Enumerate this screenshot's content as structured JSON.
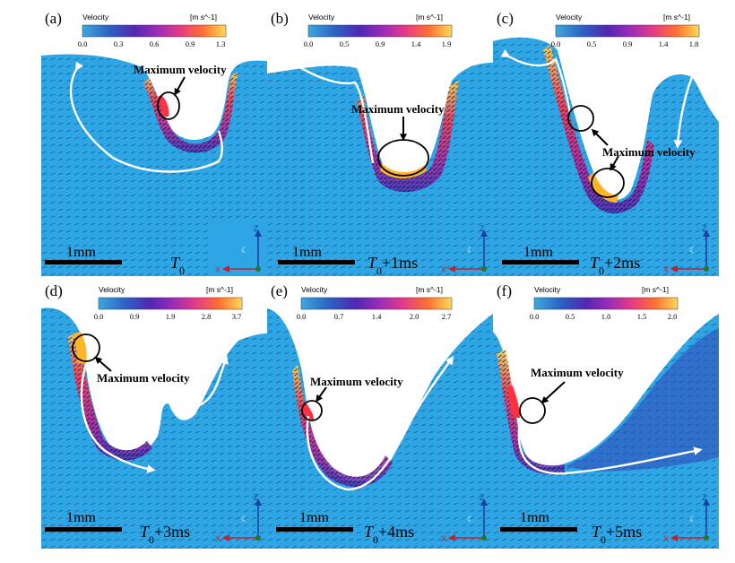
{
  "colorbar": {
    "title": "Velocity",
    "unit": "[m s^-1]",
    "colors": [
      "#3fa8df",
      "#2a64c4",
      "#5226b4",
      "#9a2cb8",
      "#e63a86",
      "#ff7030",
      "#ffd95a"
    ]
  },
  "scale_bar_label": "1mm",
  "annotation_label": "Maximum velocity",
  "axis_labels": {
    "z": "Z",
    "x": "X"
  },
  "colors": {
    "fluid": "#2ea6e6",
    "flow_arrow": "#ffffff",
    "marker": "#000000",
    "x_axis": "#c8202a",
    "z_axis": "#1f3ea8",
    "origin": "#1d7a2e"
  },
  "panels": [
    {
      "tag": "(a)",
      "time_base": "T",
      "time_sub": "0",
      "time_suffix": "",
      "colorbar_ticks": [
        "0.0",
        "0.3",
        "0.6",
        "0.9",
        "1.3"
      ],
      "has_annotation": true
    },
    {
      "tag": "(b)",
      "time_base": "T",
      "time_sub": "0",
      "time_suffix": "+1ms",
      "colorbar_ticks": [
        "0.0",
        "0.5",
        "0.9",
        "1.4",
        "1.9"
      ],
      "has_annotation": true
    },
    {
      "tag": "(c)",
      "time_base": "T",
      "time_sub": "0",
      "time_suffix": "+2ms",
      "colorbar_ticks": [
        "0.0",
        "0.5",
        "0.9",
        "1.4",
        "1.8"
      ],
      "has_annotation": true
    },
    {
      "tag": "(d)",
      "time_base": "T",
      "time_sub": "0",
      "time_suffix": "+3ms",
      "colorbar_ticks": [
        "0.0",
        "0.9",
        "1.9",
        "2.8",
        "3.7"
      ],
      "has_annotation": true
    },
    {
      "tag": "(e)",
      "time_base": "T",
      "time_sub": "0",
      "time_suffix": "+4ms",
      "colorbar_ticks": [
        "0.0",
        "0.7",
        "1.4",
        "2.0",
        "2.7"
      ],
      "has_annotation": true
    },
    {
      "tag": "(f)",
      "time_base": "T",
      "time_sub": "0",
      "time_suffix": "+5ms",
      "colorbar_ticks": [
        "0.0",
        "0.5",
        "1.0",
        "1.5",
        "2.0"
      ],
      "has_annotation": true
    }
  ]
}
